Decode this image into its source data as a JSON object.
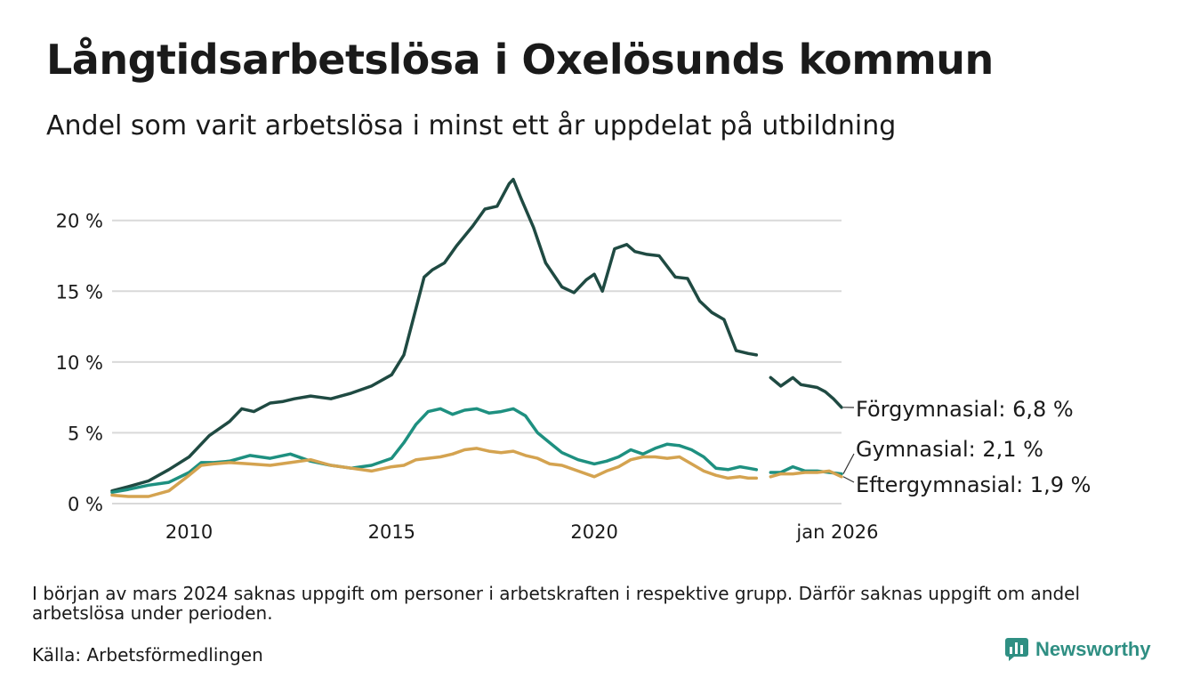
{
  "header": {
    "title": "Långtidsarbetslösa i Oxelösunds kommun",
    "subtitle": "Andel som varit arbetslösa i minst ett år uppdelat på utbildning"
  },
  "footer": {
    "note": "I början av mars 2024 saknas uppgift om personer i arbetskraften i respektive grupp. Därför saknas uppgift om andel arbetslösa under perioden.",
    "source": "Källa: Arbetsförmedlingen",
    "brand": "Newsworthy"
  },
  "colors": {
    "forgymnasial": "#1f4a42",
    "gymnasial": "#1e9080",
    "eftergymnasial": "#d4a350",
    "grid": "#d9d9d9",
    "text": "#1a1a1a",
    "brand": "#2f8f83"
  },
  "chart_data": {
    "type": "line",
    "title": "Långtidsarbetslösa i Oxelösunds kommun",
    "xlabel": "",
    "ylabel": "",
    "xlim": [
      2008.1,
      2026.1
    ],
    "ylim": [
      0,
      23
    ],
    "yticks": [
      0,
      5,
      10,
      15,
      20
    ],
    "ytick_labels": [
      "0 %",
      "5 %",
      "10 %",
      "15 %",
      "20 %"
    ],
    "xticks": [
      2010,
      2015,
      2020,
      2026
    ],
    "xtick_labels": [
      "2010",
      "2015",
      "2020",
      "jan 2026"
    ],
    "grid": true,
    "gap": [
      2024.0,
      2024.35
    ],
    "series": [
      {
        "key": "forgymnasial",
        "name": "Förgymnasial",
        "end_label": "Förgymnasial: 6,8 %",
        "x": [
          2008.1,
          2008.5,
          2009.0,
          2009.5,
          2010.0,
          2010.5,
          2011.0,
          2011.3,
          2011.6,
          2012.0,
          2012.3,
          2012.6,
          2013.0,
          2013.5,
          2014.0,
          2014.5,
          2015.0,
          2015.3,
          2015.6,
          2015.8,
          2016.0,
          2016.3,
          2016.6,
          2017.0,
          2017.3,
          2017.6,
          2017.9,
          2018.0,
          2018.2,
          2018.5,
          2018.8,
          2019.2,
          2019.5,
          2019.8,
          2020.0,
          2020.2,
          2020.5,
          2020.8,
          2021.0,
          2021.3,
          2021.6,
          2022.0,
          2022.3,
          2022.6,
          2022.9,
          2023.2,
          2023.5,
          2023.8,
          2024.0,
          2024.35,
          2024.6,
          2024.9,
          2025.1,
          2025.3,
          2025.5,
          2025.7,
          2025.9,
          2026.1
        ],
        "y": [
          0.9,
          1.2,
          1.6,
          2.4,
          3.3,
          4.8,
          5.8,
          6.7,
          6.5,
          7.1,
          7.2,
          7.4,
          7.6,
          7.4,
          7.8,
          8.3,
          9.1,
          10.5,
          13.8,
          16.0,
          16.5,
          17.0,
          18.2,
          19.6,
          20.8,
          21.0,
          22.6,
          22.9,
          21.5,
          19.5,
          17.0,
          15.3,
          14.9,
          15.8,
          16.2,
          15.0,
          18.0,
          18.3,
          17.8,
          17.6,
          17.5,
          16.0,
          15.9,
          14.3,
          13.5,
          13.0,
          10.8,
          10.6,
          10.5,
          8.9,
          8.3,
          8.9,
          8.4,
          8.3,
          8.2,
          7.9,
          7.4,
          6.8
        ]
      },
      {
        "key": "gymnasial",
        "name": "Gymnasial",
        "end_label": "Gymnasial: 2,1 %",
        "x": [
          2008.1,
          2008.5,
          2009.0,
          2009.5,
          2010.0,
          2010.3,
          2010.6,
          2011.0,
          2011.5,
          2012.0,
          2012.5,
          2013.0,
          2013.5,
          2014.0,
          2014.5,
          2015.0,
          2015.3,
          2015.6,
          2015.9,
          2016.2,
          2016.5,
          2016.8,
          2017.1,
          2017.4,
          2017.7,
          2018.0,
          2018.3,
          2018.6,
          2018.9,
          2019.2,
          2019.6,
          2020.0,
          2020.3,
          2020.6,
          2020.9,
          2021.2,
          2021.5,
          2021.8,
          2022.1,
          2022.4,
          2022.7,
          2023.0,
          2023.3,
          2023.6,
          2023.8,
          2024.0,
          2024.35,
          2024.6,
          2024.9,
          2025.2,
          2025.5,
          2025.8,
          2026.1
        ],
        "y": [
          0.8,
          1.0,
          1.3,
          1.5,
          2.2,
          2.9,
          2.9,
          3.0,
          3.4,
          3.2,
          3.5,
          3.0,
          2.7,
          2.5,
          2.7,
          3.2,
          4.3,
          5.6,
          6.5,
          6.7,
          6.3,
          6.6,
          6.7,
          6.4,
          6.5,
          6.7,
          6.2,
          5.0,
          4.3,
          3.6,
          3.1,
          2.8,
          3.0,
          3.3,
          3.8,
          3.5,
          3.9,
          4.2,
          4.1,
          3.8,
          3.3,
          2.5,
          2.4,
          2.6,
          2.5,
          2.4,
          2.2,
          2.2,
          2.6,
          2.3,
          2.3,
          2.2,
          2.1
        ]
      },
      {
        "key": "eftergymnasial",
        "name": "Eftergymnasial",
        "end_label": "Eftergymnasial: 1,9 %",
        "x": [
          2008.1,
          2008.5,
          2009.0,
          2009.5,
          2010.0,
          2010.3,
          2010.6,
          2011.0,
          2011.5,
          2012.0,
          2012.5,
          2013.0,
          2013.5,
          2014.0,
          2014.5,
          2015.0,
          2015.3,
          2015.6,
          2015.9,
          2016.2,
          2016.5,
          2016.8,
          2017.1,
          2017.4,
          2017.7,
          2018.0,
          2018.3,
          2018.6,
          2018.9,
          2019.2,
          2019.6,
          2020.0,
          2020.3,
          2020.6,
          2020.9,
          2021.2,
          2021.5,
          2021.8,
          2022.1,
          2022.4,
          2022.7,
          2023.0,
          2023.3,
          2023.6,
          2023.8,
          2024.0,
          2024.35,
          2024.6,
          2024.9,
          2025.2,
          2025.5,
          2025.8,
          2026.1
        ],
        "y": [
          0.6,
          0.5,
          0.5,
          0.9,
          2.0,
          2.7,
          2.8,
          2.9,
          2.8,
          2.7,
          2.9,
          3.1,
          2.7,
          2.5,
          2.3,
          2.6,
          2.7,
          3.1,
          3.2,
          3.3,
          3.5,
          3.8,
          3.9,
          3.7,
          3.6,
          3.7,
          3.4,
          3.2,
          2.8,
          2.7,
          2.3,
          1.9,
          2.3,
          2.6,
          3.1,
          3.3,
          3.3,
          3.2,
          3.3,
          2.8,
          2.3,
          2.0,
          1.8,
          1.9,
          1.8,
          1.8,
          1.9,
          2.1,
          2.1,
          2.2,
          2.2,
          2.3,
          1.9
        ]
      }
    ]
  }
}
